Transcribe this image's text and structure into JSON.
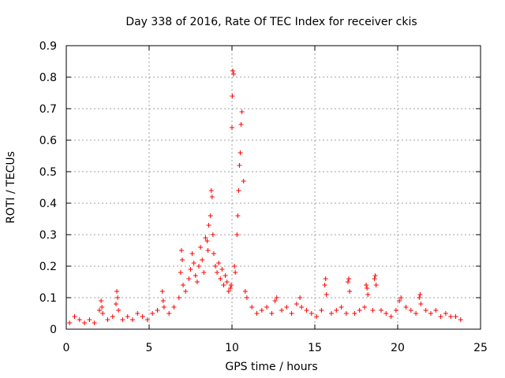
{
  "chart_data": {
    "type": "scatter",
    "title": "Day 338 of 2016, Rate Of TEC Index for receiver ckis",
    "xlabel": "GPS time / hours",
    "ylabel": "ROTI / TECUs",
    "xlim": [
      0,
      25
    ],
    "ylim": [
      0,
      0.9
    ],
    "xticks": [
      0,
      5,
      10,
      15,
      20,
      25
    ],
    "xtick_labels": [
      "0",
      "5",
      "10",
      "15",
      "20",
      "25"
    ],
    "yticks": [
      0,
      0.1,
      0.2,
      0.3,
      0.4,
      0.5,
      0.6,
      0.7,
      0.8,
      0.9
    ],
    "ytick_labels": [
      "0",
      "0.1",
      "0.2",
      "0.3",
      "0.4",
      "0.5",
      "0.6",
      "0.7",
      "0.8",
      "0.9"
    ],
    "grid": true,
    "marker": "+",
    "marker_color": "#ff0000",
    "series": [
      {
        "name": "ROTI",
        "x": [
          0.2,
          0.5,
          0.8,
          1.1,
          1.4,
          1.7,
          2.0,
          2.1,
          2.15,
          2.2,
          2.5,
          2.8,
          3.0,
          3.05,
          3.1,
          3.15,
          3.4,
          3.7,
          4.0,
          4.3,
          4.6,
          4.9,
          5.2,
          5.5,
          5.8,
          5.85,
          5.9,
          6.2,
          6.5,
          6.8,
          6.9,
          6.95,
          7.0,
          7.05,
          7.2,
          7.4,
          7.5,
          7.6,
          7.7,
          7.8,
          7.9,
          8.0,
          8.1,
          8.2,
          8.3,
          8.4,
          8.5,
          8.55,
          8.6,
          8.7,
          8.75,
          8.8,
          8.85,
          8.9,
          9.0,
          9.1,
          9.2,
          9.3,
          9.4,
          9.5,
          9.6,
          9.7,
          9.8,
          9.9,
          9.95,
          10.0,
          10.02,
          10.05,
          10.1,
          10.15,
          10.2,
          10.3,
          10.35,
          10.4,
          10.45,
          10.5,
          10.55,
          10.6,
          10.7,
          10.8,
          10.9,
          11.2,
          11.5,
          11.8,
          12.1,
          12.4,
          12.6,
          12.7,
          13.0,
          13.3,
          13.6,
          13.9,
          14.1,
          14.2,
          14.5,
          14.8,
          15.1,
          15.4,
          15.6,
          15.65,
          15.7,
          16.0,
          16.3,
          16.6,
          16.9,
          17.0,
          17.05,
          17.1,
          17.4,
          17.7,
          18.0,
          18.1,
          18.15,
          18.2,
          18.5,
          18.6,
          18.65,
          18.7,
          19.0,
          19.3,
          19.6,
          19.9,
          20.1,
          20.2,
          20.5,
          20.8,
          21.1,
          21.3,
          21.35,
          21.4,
          21.7,
          22.0,
          22.3,
          22.6,
          22.9,
          23.2,
          23.5,
          23.8
        ],
        "y": [
          0.02,
          0.04,
          0.03,
          0.02,
          0.03,
          0.02,
          0.06,
          0.09,
          0.07,
          0.05,
          0.03,
          0.04,
          0.08,
          0.12,
          0.1,
          0.06,
          0.03,
          0.04,
          0.03,
          0.05,
          0.04,
          0.03,
          0.05,
          0.06,
          0.12,
          0.09,
          0.07,
          0.05,
          0.07,
          0.1,
          0.18,
          0.25,
          0.22,
          0.14,
          0.12,
          0.16,
          0.19,
          0.24,
          0.21,
          0.17,
          0.15,
          0.2,
          0.26,
          0.22,
          0.18,
          0.29,
          0.28,
          0.25,
          0.33,
          0.36,
          0.44,
          0.42,
          0.3,
          0.24,
          0.2,
          0.18,
          0.21,
          0.16,
          0.19,
          0.14,
          0.17,
          0.15,
          0.12,
          0.13,
          0.14,
          0.64,
          0.74,
          0.82,
          0.81,
          0.2,
          0.18,
          0.3,
          0.36,
          0.44,
          0.52,
          0.56,
          0.65,
          0.69,
          0.47,
          0.12,
          0.1,
          0.07,
          0.05,
          0.06,
          0.07,
          0.05,
          0.09,
          0.1,
          0.06,
          0.07,
          0.05,
          0.08,
          0.1,
          0.07,
          0.06,
          0.05,
          0.04,
          0.06,
          0.14,
          0.16,
          0.11,
          0.05,
          0.06,
          0.07,
          0.05,
          0.15,
          0.16,
          0.12,
          0.05,
          0.06,
          0.07,
          0.14,
          0.13,
          0.11,
          0.06,
          0.16,
          0.17,
          0.14,
          0.06,
          0.05,
          0.04,
          0.06,
          0.09,
          0.1,
          0.07,
          0.06,
          0.05,
          0.1,
          0.11,
          0.08,
          0.06,
          0.05,
          0.06,
          0.04,
          0.05,
          0.04,
          0.04,
          0.03
        ]
      }
    ]
  }
}
